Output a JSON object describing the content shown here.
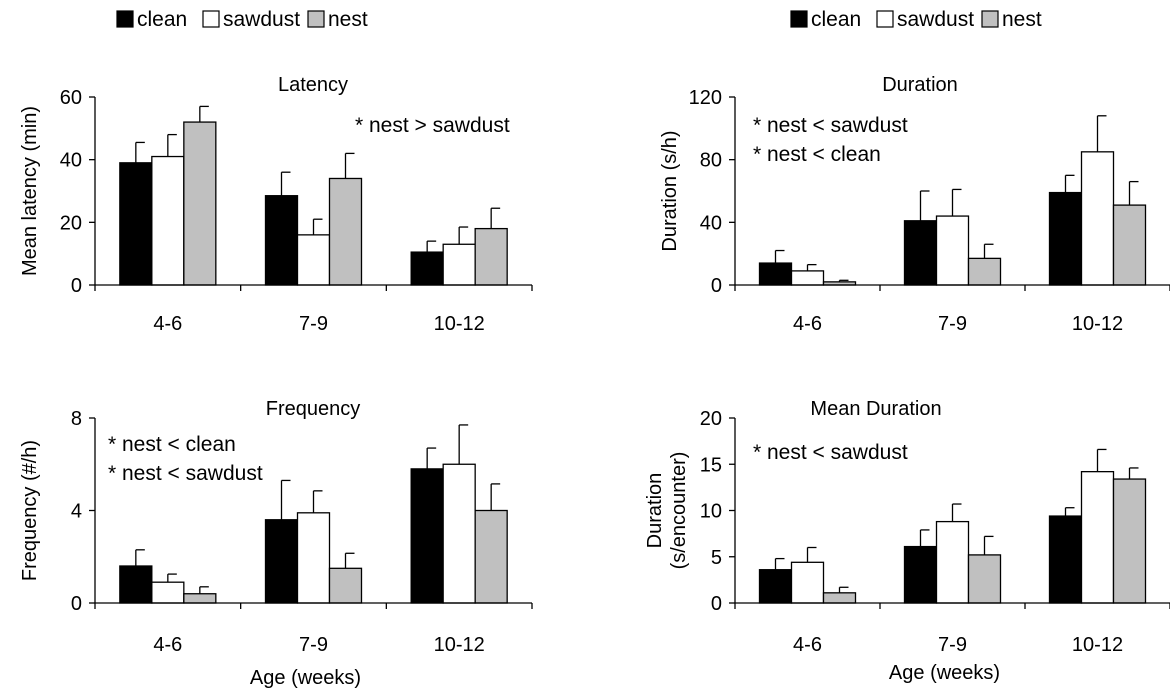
{
  "legend": [
    {
      "label": "clean",
      "color": "#000000"
    },
    {
      "label": "sawdust",
      "color": "#ffffff"
    },
    {
      "label": "nest",
      "color": "#c0c0c0"
    }
  ],
  "chart_data": [
    {
      "type": "bar",
      "title": "Latency",
      "categories": [
        "4-6",
        "7-9",
        "10-12"
      ],
      "xlabel": "",
      "ylabel": "Mean latency (min)",
      "ylim": [
        0,
        60
      ],
      "yticks": [
        "0",
        "20",
        "40",
        "60"
      ],
      "annotations": [
        "* nest > sawdust"
      ],
      "series": [
        {
          "name": "clean",
          "color": "#000000",
          "values": [
            39,
            28.5,
            10.5
          ],
          "errors": [
            6.5,
            7.5,
            3.5
          ]
        },
        {
          "name": "sawdust",
          "color": "#ffffff",
          "values": [
            41,
            16,
            13
          ],
          "errors": [
            7,
            5,
            5.5
          ]
        },
        {
          "name": "nest",
          "color": "#c0c0c0",
          "values": [
            52,
            34,
            18
          ],
          "errors": [
            5,
            8,
            6.5
          ]
        }
      ]
    },
    {
      "type": "bar",
      "title": "Duration",
      "categories": [
        "4-6",
        "7-9",
        "10-12"
      ],
      "xlabel": "",
      "ylabel": "Duration (s/h)",
      "ylim": [
        0,
        120
      ],
      "yticks": [
        "0",
        "40",
        "80",
        "120"
      ],
      "annotations": [
        "* nest < sawdust",
        "* nest < clean"
      ],
      "series": [
        {
          "name": "clean",
          "color": "#000000",
          "values": [
            14,
            41,
            59
          ],
          "errors": [
            8,
            19,
            11
          ]
        },
        {
          "name": "sawdust",
          "color": "#ffffff",
          "values": [
            9,
            44,
            85
          ],
          "errors": [
            4,
            17,
            23
          ]
        },
        {
          "name": "nest",
          "color": "#c0c0c0",
          "values": [
            2,
            17,
            51
          ],
          "errors": [
            1,
            9,
            15
          ]
        }
      ]
    },
    {
      "type": "bar",
      "title": "Frequency",
      "categories": [
        "4-6",
        "7-9",
        "10-12"
      ],
      "xlabel": "Age (weeks)",
      "ylabel": "Frequency (#/h)",
      "ylim": [
        0,
        8
      ],
      "yticks": [
        "0",
        "4",
        "8"
      ],
      "annotations": [
        "* nest < clean",
        "* nest < sawdust"
      ],
      "series": [
        {
          "name": "clean",
          "color": "#000000",
          "values": [
            1.6,
            3.6,
            5.8
          ],
          "errors": [
            0.7,
            1.7,
            0.9
          ]
        },
        {
          "name": "sawdust",
          "color": "#ffffff",
          "values": [
            0.9,
            3.9,
            6.0
          ],
          "errors": [
            0.35,
            0.95,
            1.7
          ]
        },
        {
          "name": "nest",
          "color": "#c0c0c0",
          "values": [
            0.4,
            1.5,
            4.0
          ],
          "errors": [
            0.3,
            0.65,
            1.15
          ]
        }
      ]
    },
    {
      "type": "bar",
      "title": "Mean Duration",
      "categories": [
        "4-6",
        "7-9",
        "10-12"
      ],
      "xlabel": "Age (weeks)",
      "ylabel": "Duration (s/encounter)",
      "ylabel_lines": [
        "Duration",
        "(s/encounter)"
      ],
      "ylim": [
        0,
        20
      ],
      "yticks": [
        "0",
        "5",
        "10",
        "15",
        "20"
      ],
      "annotations": [
        "* nest < sawdust"
      ],
      "series": [
        {
          "name": "clean",
          "color": "#000000",
          "values": [
            3.6,
            6.1,
            9.4
          ],
          "errors": [
            1.2,
            1.8,
            0.9
          ]
        },
        {
          "name": "sawdust",
          "color": "#ffffff",
          "values": [
            4.4,
            8.8,
            14.2
          ],
          "errors": [
            1.6,
            1.9,
            2.4
          ]
        },
        {
          "name": "nest",
          "color": "#c0c0c0",
          "values": [
            1.1,
            5.2,
            13.4
          ],
          "errors": [
            0.6,
            2.0,
            1.2
          ]
        }
      ]
    }
  ]
}
